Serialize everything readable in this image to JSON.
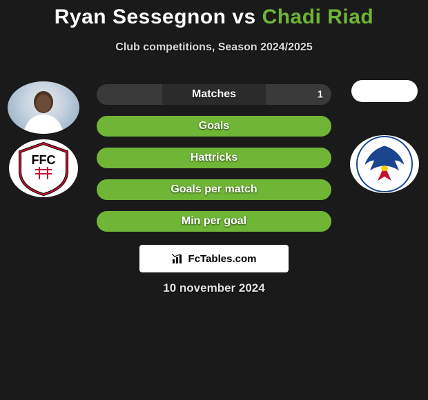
{
  "title": {
    "player1": "Ryan Sessegnon",
    "vs": "vs",
    "player2": "Chadi Riad"
  },
  "subtitle": "Club competitions, Season 2024/2025",
  "colors": {
    "player1_fill": "#303030",
    "player2_fill": "#6fb536",
    "neutral_fill": "#6fb536",
    "bar_bg": "#6fb536",
    "accent_green": "#6fb536",
    "text_white": "#ffffff",
    "bg": "#1a1a1a"
  },
  "bars": [
    {
      "key": "matches",
      "label": "Matches",
      "left_value": "",
      "right_value": "1",
      "left_pct": 0,
      "right_pct": 100,
      "left_color": "#303030",
      "right_color": "#2b2b2b"
    },
    {
      "key": "goals",
      "label": "Goals",
      "left_value": "",
      "right_value": "",
      "left_pct": 0,
      "right_pct": 100,
      "left_color": "#6fb536",
      "right_color": "#6fb536"
    },
    {
      "key": "hattricks",
      "label": "Hattricks",
      "left_value": "",
      "right_value": "",
      "left_pct": 0,
      "right_pct": 100,
      "left_color": "#6fb536",
      "right_color": "#6fb536"
    },
    {
      "key": "gpm",
      "label": "Goals per match",
      "left_value": "",
      "right_value": "",
      "left_pct": 0,
      "right_pct": 100,
      "left_color": "#6fb536",
      "right_color": "#6fb536"
    },
    {
      "key": "mpg",
      "label": "Min per goal",
      "left_value": "",
      "right_value": "",
      "left_pct": 0,
      "right_pct": 100,
      "left_color": "#6fb536",
      "right_color": "#6fb536"
    }
  ],
  "attribution": "FcTables.com",
  "date": "10 november 2024",
  "left_images": {
    "photo_alt": "Ryan Sessegnon photo",
    "club_alt": "Fulham FC badge"
  },
  "right_images": {
    "photo_alt": "Chadi Riad photo",
    "club_alt": "Crystal Palace FC badge"
  }
}
